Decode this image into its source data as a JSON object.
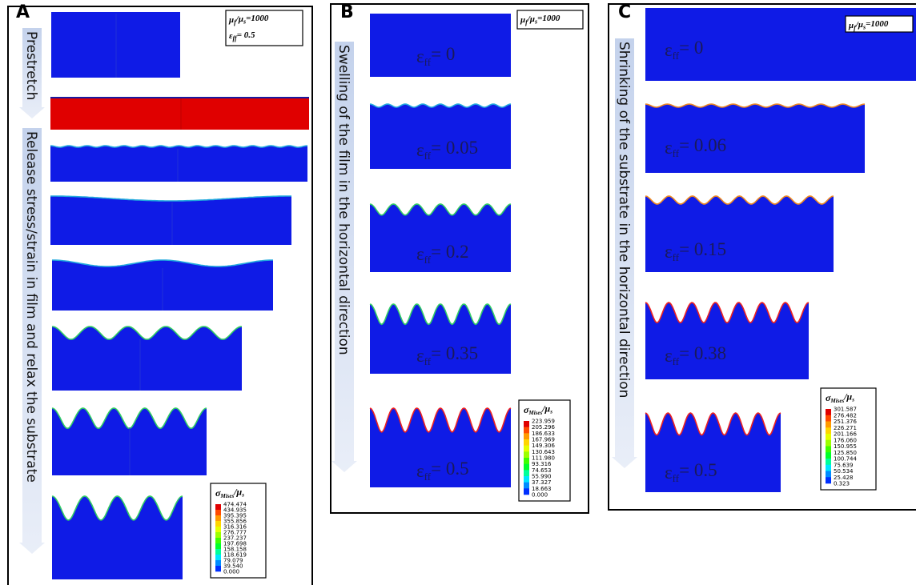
{
  "panels": [
    {
      "label": "A",
      "arrow_texts": [
        "Prestretch",
        "Release stress/strain in film and relax the substrate"
      ],
      "params": [
        {
          "parts": [
            "μ",
            "f",
            "/μ",
            "s",
            "=1000"
          ]
        },
        {
          "parts": [
            "ε",
            "ff",
            "= 0.5"
          ]
        }
      ],
      "strain_labels": [],
      "legend": {
        "title": [
          "σ",
          "Mises",
          "/μ",
          "s"
        ],
        "values": [
          "474.474",
          "434.935",
          "395.395",
          "355.856",
          "316.316",
          "276.777",
          "237.237",
          "197.698",
          "158.158",
          "118.619",
          "79.079",
          "39.540",
          "0.000"
        ]
      }
    },
    {
      "label": "B",
      "arrow_texts": [
        "Swelling of the film in the horizontal direction"
      ],
      "params": [
        {
          "parts": [
            "μ",
            "f",
            "/μ",
            "s",
            "=1000"
          ]
        }
      ],
      "strain_labels": [
        [
          "ε",
          "ff",
          "= 0"
        ],
        [
          "ε",
          "ff",
          "= 0.05"
        ],
        [
          "ε",
          "ff",
          "= 0.2"
        ],
        [
          "ε",
          "ff",
          "= 0.35"
        ],
        [
          "ε",
          "ff",
          "= 0.5"
        ]
      ],
      "legend": {
        "title": [
          "σ",
          "Mises",
          "/μ",
          "s"
        ],
        "values": [
          "223.959",
          "205.296",
          "186.633",
          "167.969",
          "149.306",
          "130.643",
          "111.980",
          "93.316",
          "74.653",
          "55.990",
          "37.327",
          "18.663",
          "0.000"
        ]
      }
    },
    {
      "label": "C",
      "arrow_texts": [
        "Shrinking of the substrate in the horizontal direction"
      ],
      "params": [
        {
          "parts": [
            "μ",
            "f",
            "/μ",
            "s",
            "=1000"
          ]
        }
      ],
      "strain_labels": [
        [
          "ε",
          "ff",
          "= 0"
        ],
        [
          "ε",
          "ff",
          "= 0.06"
        ],
        [
          "ε",
          "ff",
          "= 0.15"
        ],
        [
          "ε",
          "ff",
          "= 0.38"
        ],
        [
          "ε",
          "ff",
          "= 0.5"
        ]
      ],
      "legend": {
        "title": [
          "σ",
          "Mises",
          "/μ",
          "s"
        ],
        "values": [
          "301.587",
          "276.482",
          "251.376",
          "226.271",
          "201.166",
          "176.060",
          "150.955",
          "125.850",
          "100.744",
          "75.639",
          "50.534",
          "25.428",
          "0.323"
        ]
      }
    }
  ]
}
